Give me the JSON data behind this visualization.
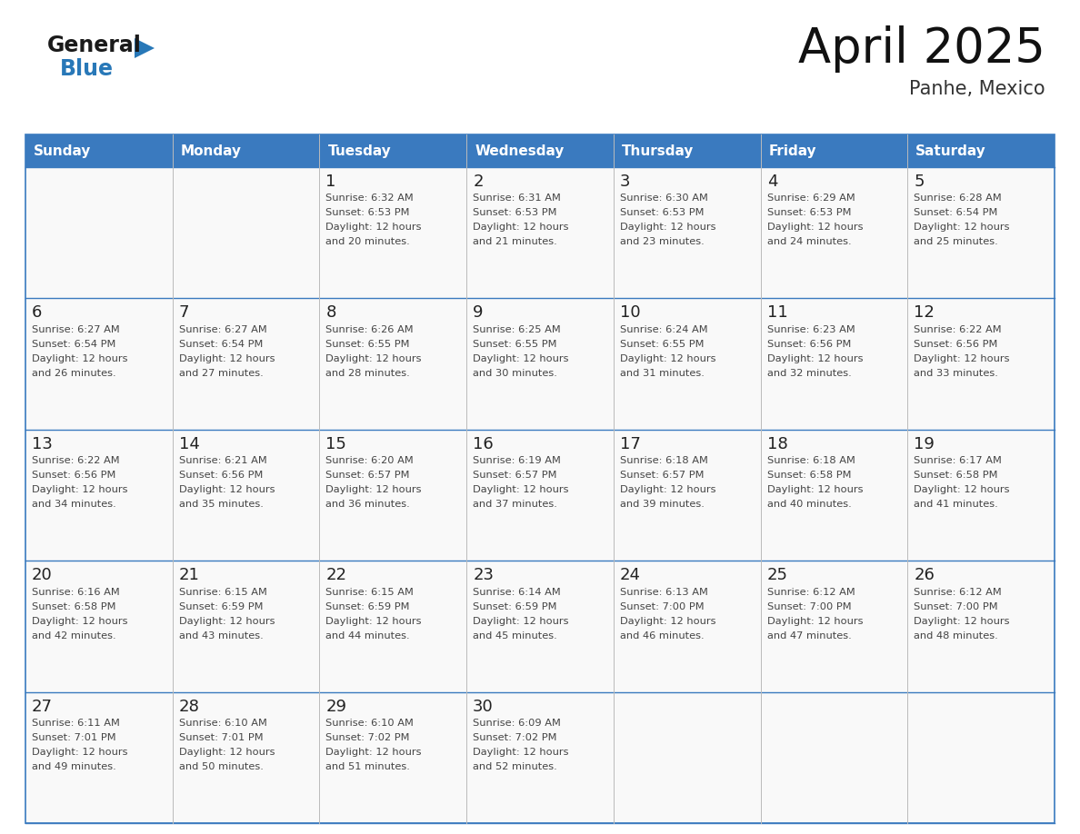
{
  "title": "April 2025",
  "subtitle": "Panhe, Mexico",
  "days_of_week": [
    "Sunday",
    "Monday",
    "Tuesday",
    "Wednesday",
    "Thursday",
    "Friday",
    "Saturday"
  ],
  "header_bg": "#3a7abf",
  "header_text": "#ffffff",
  "cell_bg": "#f9f9f9",
  "day_number_color": "#222222",
  "text_color": "#444444",
  "line_color": "#3a7abf",
  "calendar": [
    [
      {
        "day": "",
        "sunrise": "",
        "sunset": "",
        "daylight": ""
      },
      {
        "day": "",
        "sunrise": "",
        "sunset": "",
        "daylight": ""
      },
      {
        "day": "1",
        "sunrise": "Sunrise: 6:32 AM",
        "sunset": "Sunset: 6:53 PM",
        "daylight": "Daylight: 12 hours\nand 20 minutes."
      },
      {
        "day": "2",
        "sunrise": "Sunrise: 6:31 AM",
        "sunset": "Sunset: 6:53 PM",
        "daylight": "Daylight: 12 hours\nand 21 minutes."
      },
      {
        "day": "3",
        "sunrise": "Sunrise: 6:30 AM",
        "sunset": "Sunset: 6:53 PM",
        "daylight": "Daylight: 12 hours\nand 23 minutes."
      },
      {
        "day": "4",
        "sunrise": "Sunrise: 6:29 AM",
        "sunset": "Sunset: 6:53 PM",
        "daylight": "Daylight: 12 hours\nand 24 minutes."
      },
      {
        "day": "5",
        "sunrise": "Sunrise: 6:28 AM",
        "sunset": "Sunset: 6:54 PM",
        "daylight": "Daylight: 12 hours\nand 25 minutes."
      }
    ],
    [
      {
        "day": "6",
        "sunrise": "Sunrise: 6:27 AM",
        "sunset": "Sunset: 6:54 PM",
        "daylight": "Daylight: 12 hours\nand 26 minutes."
      },
      {
        "day": "7",
        "sunrise": "Sunrise: 6:27 AM",
        "sunset": "Sunset: 6:54 PM",
        "daylight": "Daylight: 12 hours\nand 27 minutes."
      },
      {
        "day": "8",
        "sunrise": "Sunrise: 6:26 AM",
        "sunset": "Sunset: 6:55 PM",
        "daylight": "Daylight: 12 hours\nand 28 minutes."
      },
      {
        "day": "9",
        "sunrise": "Sunrise: 6:25 AM",
        "sunset": "Sunset: 6:55 PM",
        "daylight": "Daylight: 12 hours\nand 30 minutes."
      },
      {
        "day": "10",
        "sunrise": "Sunrise: 6:24 AM",
        "sunset": "Sunset: 6:55 PM",
        "daylight": "Daylight: 12 hours\nand 31 minutes."
      },
      {
        "day": "11",
        "sunrise": "Sunrise: 6:23 AM",
        "sunset": "Sunset: 6:56 PM",
        "daylight": "Daylight: 12 hours\nand 32 minutes."
      },
      {
        "day": "12",
        "sunrise": "Sunrise: 6:22 AM",
        "sunset": "Sunset: 6:56 PM",
        "daylight": "Daylight: 12 hours\nand 33 minutes."
      }
    ],
    [
      {
        "day": "13",
        "sunrise": "Sunrise: 6:22 AM",
        "sunset": "Sunset: 6:56 PM",
        "daylight": "Daylight: 12 hours\nand 34 minutes."
      },
      {
        "day": "14",
        "sunrise": "Sunrise: 6:21 AM",
        "sunset": "Sunset: 6:56 PM",
        "daylight": "Daylight: 12 hours\nand 35 minutes."
      },
      {
        "day": "15",
        "sunrise": "Sunrise: 6:20 AM",
        "sunset": "Sunset: 6:57 PM",
        "daylight": "Daylight: 12 hours\nand 36 minutes."
      },
      {
        "day": "16",
        "sunrise": "Sunrise: 6:19 AM",
        "sunset": "Sunset: 6:57 PM",
        "daylight": "Daylight: 12 hours\nand 37 minutes."
      },
      {
        "day": "17",
        "sunrise": "Sunrise: 6:18 AM",
        "sunset": "Sunset: 6:57 PM",
        "daylight": "Daylight: 12 hours\nand 39 minutes."
      },
      {
        "day": "18",
        "sunrise": "Sunrise: 6:18 AM",
        "sunset": "Sunset: 6:58 PM",
        "daylight": "Daylight: 12 hours\nand 40 minutes."
      },
      {
        "day": "19",
        "sunrise": "Sunrise: 6:17 AM",
        "sunset": "Sunset: 6:58 PM",
        "daylight": "Daylight: 12 hours\nand 41 minutes."
      }
    ],
    [
      {
        "day": "20",
        "sunrise": "Sunrise: 6:16 AM",
        "sunset": "Sunset: 6:58 PM",
        "daylight": "Daylight: 12 hours\nand 42 minutes."
      },
      {
        "day": "21",
        "sunrise": "Sunrise: 6:15 AM",
        "sunset": "Sunset: 6:59 PM",
        "daylight": "Daylight: 12 hours\nand 43 minutes."
      },
      {
        "day": "22",
        "sunrise": "Sunrise: 6:15 AM",
        "sunset": "Sunset: 6:59 PM",
        "daylight": "Daylight: 12 hours\nand 44 minutes."
      },
      {
        "day": "23",
        "sunrise": "Sunrise: 6:14 AM",
        "sunset": "Sunset: 6:59 PM",
        "daylight": "Daylight: 12 hours\nand 45 minutes."
      },
      {
        "day": "24",
        "sunrise": "Sunrise: 6:13 AM",
        "sunset": "Sunset: 7:00 PM",
        "daylight": "Daylight: 12 hours\nand 46 minutes."
      },
      {
        "day": "25",
        "sunrise": "Sunrise: 6:12 AM",
        "sunset": "Sunset: 7:00 PM",
        "daylight": "Daylight: 12 hours\nand 47 minutes."
      },
      {
        "day": "26",
        "sunrise": "Sunrise: 6:12 AM",
        "sunset": "Sunset: 7:00 PM",
        "daylight": "Daylight: 12 hours\nand 48 minutes."
      }
    ],
    [
      {
        "day": "27",
        "sunrise": "Sunrise: 6:11 AM",
        "sunset": "Sunset: 7:01 PM",
        "daylight": "Daylight: 12 hours\nand 49 minutes."
      },
      {
        "day": "28",
        "sunrise": "Sunrise: 6:10 AM",
        "sunset": "Sunset: 7:01 PM",
        "daylight": "Daylight: 12 hours\nand 50 minutes."
      },
      {
        "day": "29",
        "sunrise": "Sunrise: 6:10 AM",
        "sunset": "Sunset: 7:02 PM",
        "daylight": "Daylight: 12 hours\nand 51 minutes."
      },
      {
        "day": "30",
        "sunrise": "Sunrise: 6:09 AM",
        "sunset": "Sunset: 7:02 PM",
        "daylight": "Daylight: 12 hours\nand 52 minutes."
      },
      {
        "day": "",
        "sunrise": "",
        "sunset": "",
        "daylight": ""
      },
      {
        "day": "",
        "sunrise": "",
        "sunset": "",
        "daylight": ""
      },
      {
        "day": "",
        "sunrise": "",
        "sunset": "",
        "daylight": ""
      }
    ]
  ],
  "logo_general_color": "#1a1a1a",
  "logo_blue_color": "#2878b8",
  "logo_triangle_color": "#2878b8",
  "fig_width": 11.88,
  "fig_height": 9.18,
  "dpi": 100
}
